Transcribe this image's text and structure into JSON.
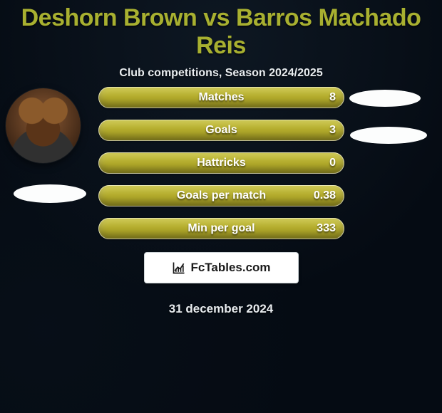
{
  "title_color": "#a8b030",
  "text_color": "#e8ecef",
  "background_color": "#050b13",
  "bar_fill_color": "#b0a82a",
  "bar_empty_color": "rgba(0,0,0,0)",
  "header": {
    "title": "Deshorn Brown vs Barros Machado Reis",
    "subtitle": "Club competitions, Season 2024/2025"
  },
  "stats": [
    {
      "label": "Matches",
      "value": "8",
      "fill_pct": 100
    },
    {
      "label": "Goals",
      "value": "3",
      "fill_pct": 100
    },
    {
      "label": "Hattricks",
      "value": "0",
      "fill_pct": 100
    },
    {
      "label": "Goals per match",
      "value": "0.38",
      "fill_pct": 100
    },
    {
      "label": "Min per goal",
      "value": "333",
      "fill_pct": 100
    }
  ],
  "brand": {
    "text": "FcTables.com"
  },
  "footer": {
    "date": "31 december 2024"
  }
}
